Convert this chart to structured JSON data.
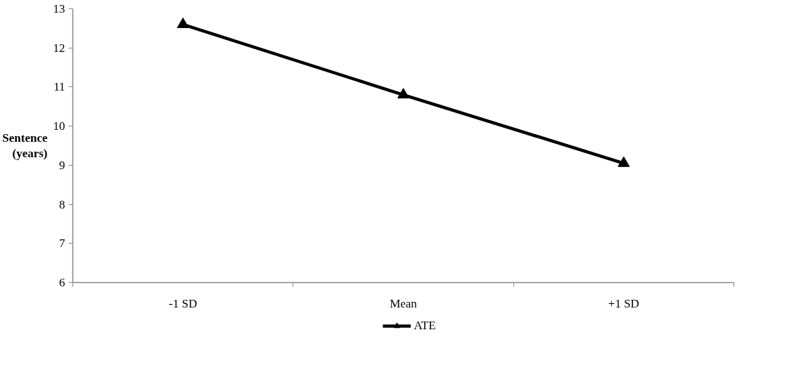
{
  "chart_data": {
    "type": "line",
    "ylabel": "Sentence (years)",
    "categories": [
      "-1 SD",
      "Mean",
      "+1 SD"
    ],
    "series": [
      {
        "name": "ATE",
        "color": "#000000",
        "values": [
          12.6,
          10.8,
          9.05
        ]
      }
    ],
    "ylim": [
      6,
      13
    ],
    "yticks": [
      6,
      7,
      8,
      9,
      10,
      11,
      12,
      13
    ],
    "marker": "triangle",
    "line_style": "solid",
    "legend": "bottom",
    "grid": false
  }
}
